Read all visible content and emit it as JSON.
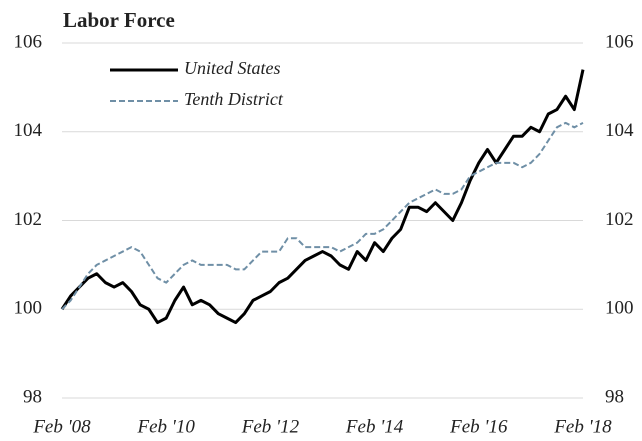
{
  "chart_data": {
    "type": "line",
    "title": "Labor Force",
    "x": [
      "2008-02",
      "2008-04",
      "2008-06",
      "2008-08",
      "2008-10",
      "2008-12",
      "2009-02",
      "2009-04",
      "2009-06",
      "2009-08",
      "2009-10",
      "2009-12",
      "2010-02",
      "2010-04",
      "2010-06",
      "2010-08",
      "2010-10",
      "2010-12",
      "2011-02",
      "2011-04",
      "2011-06",
      "2011-08",
      "2011-10",
      "2011-12",
      "2012-02",
      "2012-04",
      "2012-06",
      "2012-08",
      "2012-10",
      "2012-12",
      "2013-02",
      "2013-04",
      "2013-06",
      "2013-08",
      "2013-10",
      "2013-12",
      "2014-02",
      "2014-04",
      "2014-06",
      "2014-08",
      "2014-10",
      "2014-12",
      "2015-02",
      "2015-04",
      "2015-06",
      "2015-08",
      "2015-10",
      "2015-12",
      "2016-02",
      "2016-04",
      "2016-06",
      "2016-08",
      "2016-10",
      "2016-12",
      "2017-02",
      "2017-04",
      "2017-06",
      "2017-08",
      "2017-10",
      "2017-12",
      "2018-02"
    ],
    "series": [
      {
        "name": "United States",
        "color": "#000000",
        "dash": false,
        "values": [
          100.0,
          100.3,
          100.5,
          100.7,
          100.8,
          100.6,
          100.5,
          100.6,
          100.4,
          100.1,
          100.0,
          99.7,
          99.8,
          100.2,
          100.5,
          100.1,
          100.2,
          100.1,
          99.9,
          99.8,
          99.7,
          99.9,
          100.2,
          100.3,
          100.4,
          100.6,
          100.7,
          100.9,
          101.1,
          101.2,
          101.3,
          101.2,
          101.0,
          100.9,
          101.3,
          101.1,
          101.5,
          101.3,
          101.6,
          101.8,
          102.3,
          102.3,
          102.2,
          102.4,
          102.2,
          102.0,
          102.4,
          102.9,
          103.3,
          103.6,
          103.3,
          103.6,
          103.9,
          103.9,
          104.1,
          104.0,
          104.4,
          104.5,
          104.8,
          104.5,
          105.4
        ]
      },
      {
        "name": "Tenth District",
        "color": "#6f8fa6",
        "dash": true,
        "values": [
          100.0,
          100.2,
          100.5,
          100.8,
          101.0,
          101.1,
          101.2,
          101.3,
          101.4,
          101.3,
          101.0,
          100.7,
          100.6,
          100.8,
          101.0,
          101.1,
          101.0,
          101.0,
          101.0,
          101.0,
          100.9,
          100.9,
          101.1,
          101.3,
          101.3,
          101.3,
          101.6,
          101.6,
          101.4,
          101.4,
          101.4,
          101.4,
          101.3,
          101.4,
          101.5,
          101.7,
          101.7,
          101.8,
          102.0,
          102.2,
          102.4,
          102.5,
          102.6,
          102.7,
          102.6,
          102.6,
          102.7,
          103.0,
          103.1,
          103.2,
          103.3,
          103.3,
          103.3,
          103.2,
          103.3,
          103.5,
          103.8,
          104.1,
          104.2,
          104.1,
          104.2
        ]
      }
    ],
    "xlim": [
      "2008-02",
      "2018-02"
    ],
    "xticks": [
      {
        "value": "2008-02",
        "label": "Feb '08"
      },
      {
        "value": "2010-02",
        "label": "Feb '10"
      },
      {
        "value": "2012-02",
        "label": "Feb '12"
      },
      {
        "value": "2014-02",
        "label": "Feb '14"
      },
      {
        "value": "2016-02",
        "label": "Feb '16"
      },
      {
        "value": "2018-02",
        "label": "Feb '18"
      }
    ],
    "ylim": [
      98,
      106
    ],
    "yticks": [
      98,
      100,
      102,
      104,
      106
    ],
    "y2lim": [
      98,
      106
    ],
    "y2ticks": [
      98,
      100,
      102,
      104,
      106
    ],
    "grid": true
  }
}
